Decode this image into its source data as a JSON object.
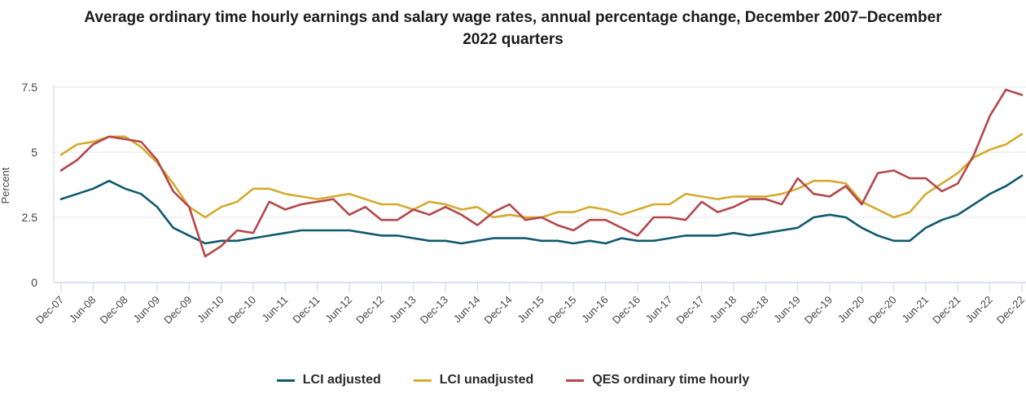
{
  "chart_data": {
    "type": "line",
    "title": "Average ordinary time hourly earnings and salary wage rates, annual percentage change, December 2007–December 2022 quarters",
    "title_lines": [
      "Average ordinary time hourly earnings and salary wage rates, annual percentage change, December 2007–December",
      "2022 quarters"
    ],
    "xlabel": "",
    "ylabel": "Percent",
    "ylim": [
      0,
      7.5
    ],
    "yticks": [
      0,
      2.5,
      5,
      7.5
    ],
    "ytick_labels": [
      "0",
      "2.5",
      "5",
      "7.5"
    ],
    "grid": true,
    "legend_position": "bottom",
    "x_tick_labels": [
      "Dec-07",
      "Jun-08",
      "Dec-08",
      "Jun-09",
      "Dec-09",
      "Jun-10",
      "Dec-10",
      "Jun-11",
      "Dec-11",
      "Jun-12",
      "Dec-12",
      "Jun-13",
      "Dec-13",
      "Jun-14",
      "Dec-14",
      "Jun-15",
      "Dec-15",
      "Jun-16",
      "Dec-16",
      "Jun-17",
      "Dec-17",
      "Jun-18",
      "Dec-18",
      "Jun-19",
      "Dec-19",
      "Jun-20",
      "Dec-20",
      "Jun-21",
      "Dec-21",
      "Jun-22",
      "Dec-22"
    ],
    "x_points": 61,
    "x_unit": "quarter (Dec-07 to Dec-22)",
    "series": [
      {
        "name": "LCI adjusted",
        "color": "#0f5a6e",
        "values": [
          3.2,
          3.4,
          3.6,
          3.9,
          3.6,
          3.4,
          2.9,
          2.1,
          1.8,
          1.5,
          1.6,
          1.6,
          1.7,
          1.8,
          1.9,
          2.0,
          2.0,
          2.0,
          2.0,
          1.9,
          1.8,
          1.8,
          1.7,
          1.6,
          1.6,
          1.5,
          1.6,
          1.7,
          1.7,
          1.7,
          1.6,
          1.6,
          1.5,
          1.6,
          1.5,
          1.7,
          1.6,
          1.6,
          1.7,
          1.8,
          1.8,
          1.8,
          1.9,
          1.8,
          1.9,
          2.0,
          2.1,
          2.5,
          2.6,
          2.5,
          2.1,
          1.8,
          1.6,
          1.6,
          2.1,
          2.4,
          2.6,
          3.0,
          3.4,
          3.7,
          4.1
        ]
      },
      {
        "name": "LCI unadjusted",
        "color": "#d4ab2e",
        "values": [
          4.9,
          5.3,
          5.4,
          5.6,
          5.6,
          5.2,
          4.6,
          3.8,
          2.9,
          2.5,
          2.9,
          3.1,
          3.6,
          3.6,
          3.4,
          3.3,
          3.2,
          3.3,
          3.4,
          3.2,
          3.0,
          3.0,
          2.8,
          3.1,
          3.0,
          2.8,
          2.9,
          2.5,
          2.6,
          2.5,
          2.5,
          2.7,
          2.7,
          2.9,
          2.8,
          2.6,
          2.8,
          3.0,
          3.0,
          3.4,
          3.3,
          3.2,
          3.3,
          3.3,
          3.3,
          3.4,
          3.6,
          3.9,
          3.9,
          3.8,
          3.1,
          2.8,
          2.5,
          2.7,
          3.4,
          3.8,
          4.2,
          4.8,
          5.1,
          5.3,
          5.7
        ]
      },
      {
        "name": "QES ordinary time hourly",
        "color": "#b5474b",
        "values": [
          4.3,
          4.7,
          5.3,
          5.6,
          5.5,
          5.4,
          4.7,
          3.5,
          2.9,
          1.0,
          1.4,
          2.0,
          1.9,
          3.1,
          2.8,
          3.0,
          3.1,
          3.2,
          2.6,
          2.9,
          2.4,
          2.4,
          2.8,
          2.6,
          2.9,
          2.6,
          2.2,
          2.7,
          3.0,
          2.4,
          2.5,
          2.2,
          2.0,
          2.4,
          2.4,
          2.1,
          1.8,
          2.5,
          2.5,
          2.4,
          3.1,
          2.7,
          2.9,
          3.2,
          3.2,
          3.0,
          4.0,
          3.4,
          3.3,
          3.7,
          3.0,
          4.2,
          4.3,
          4.0,
          4.0,
          3.5,
          3.8,
          4.9,
          6.4,
          7.4,
          7.2
        ]
      }
    ]
  },
  "colors": {
    "grid": "#e6e6e6",
    "axis": "#ccd6eb",
    "text": "#444444"
  }
}
